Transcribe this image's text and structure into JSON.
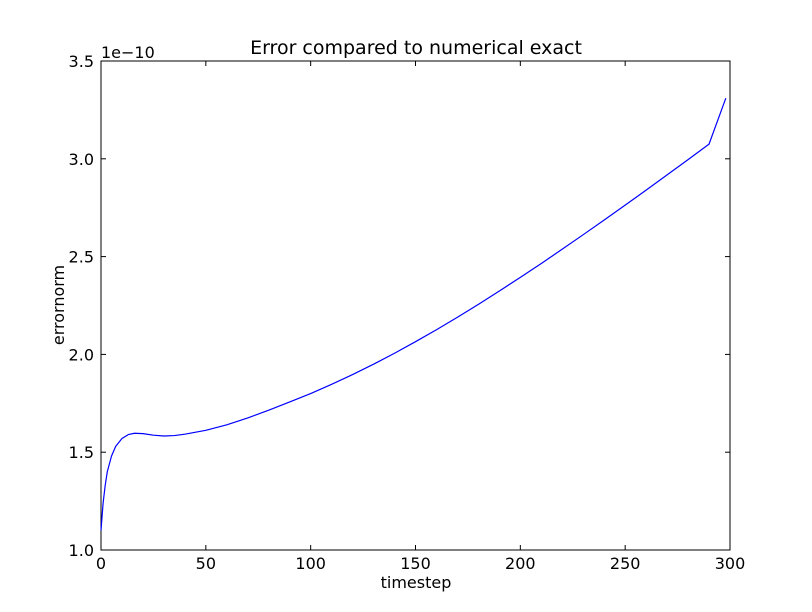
{
  "chart_data": {
    "type": "line",
    "title": "Error compared to numerical exact",
    "xlabel": "timestep",
    "ylabel": "errornorm",
    "y_offset_label": "1e−10",
    "xlim": [
      0,
      300
    ],
    "ylim": [
      1.0,
      3.5
    ],
    "xticks": [
      0,
      50,
      100,
      150,
      200,
      250,
      300
    ],
    "xtick_labels": [
      "0",
      "50",
      "100",
      "150",
      "200",
      "250",
      "300"
    ],
    "yticks": [
      1.0,
      1.5,
      2.0,
      2.5,
      3.0,
      3.5
    ],
    "ytick_labels": [
      "1.0",
      "1.5",
      "2.0",
      "2.5",
      "3.0",
      "3.5"
    ],
    "grid": false,
    "series": [
      {
        "name": "errornorm",
        "color": "#0000ff",
        "x": [
          0,
          1,
          2,
          3,
          5,
          7,
          10,
          13,
          16,
          20,
          25,
          30,
          35,
          40,
          50,
          60,
          70,
          80,
          90,
          100,
          110,
          120,
          130,
          140,
          150,
          160,
          170,
          180,
          190,
          200,
          210,
          220,
          230,
          240,
          250,
          260,
          270,
          280,
          290,
          298
        ],
        "values": [
          1.1,
          1.24,
          1.33,
          1.4,
          1.48,
          1.53,
          1.57,
          1.59,
          1.597,
          1.595,
          1.587,
          1.583,
          1.585,
          1.592,
          1.612,
          1.64,
          1.675,
          1.715,
          1.757,
          1.8,
          1.847,
          1.897,
          1.95,
          2.006,
          2.065,
          2.126,
          2.19,
          2.256,
          2.324,
          2.394,
          2.465,
          2.538,
          2.612,
          2.687,
          2.763,
          2.84,
          2.918,
          2.996,
          3.075,
          3.31
        ]
      }
    ]
  }
}
